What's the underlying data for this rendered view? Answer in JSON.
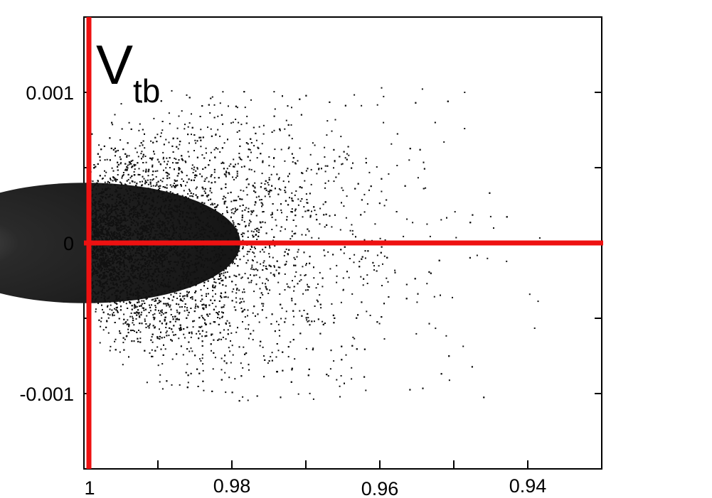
{
  "chart_data": {
    "type": "scatter",
    "title": "V",
    "title_subscript": "tb",
    "xlabel": "",
    "ylabel": "",
    "x_axis_reversed": true,
    "xlim": [
      1.0,
      0.93
    ],
    "ylim": [
      -0.0015,
      0.0015
    ],
    "x_ticks": [
      {
        "value": 1.0,
        "label": "1"
      },
      {
        "value": 0.98,
        "label": "0.98"
      },
      {
        "value": 0.96,
        "label": "0.96"
      },
      {
        "value": 0.94,
        "label": "0.94"
      }
    ],
    "y_ticks": [
      {
        "value": 0.001,
        "label": "0.001"
      },
      {
        "value": 0,
        "label": "0"
      },
      {
        "value": -0.001,
        "label": "-0.001"
      }
    ],
    "reference_lines": {
      "vertical_x": 1.0,
      "horizontal_y": 0,
      "color": "#ee1111"
    },
    "point_color": "#111111",
    "density": {
      "core_x_range": [
        1.0,
        0.98
      ],
      "core_y_halfwidth": 0.0004,
      "max_x_extent": 0.94,
      "max_y_extent": 0.00105
    },
    "grid": false
  }
}
